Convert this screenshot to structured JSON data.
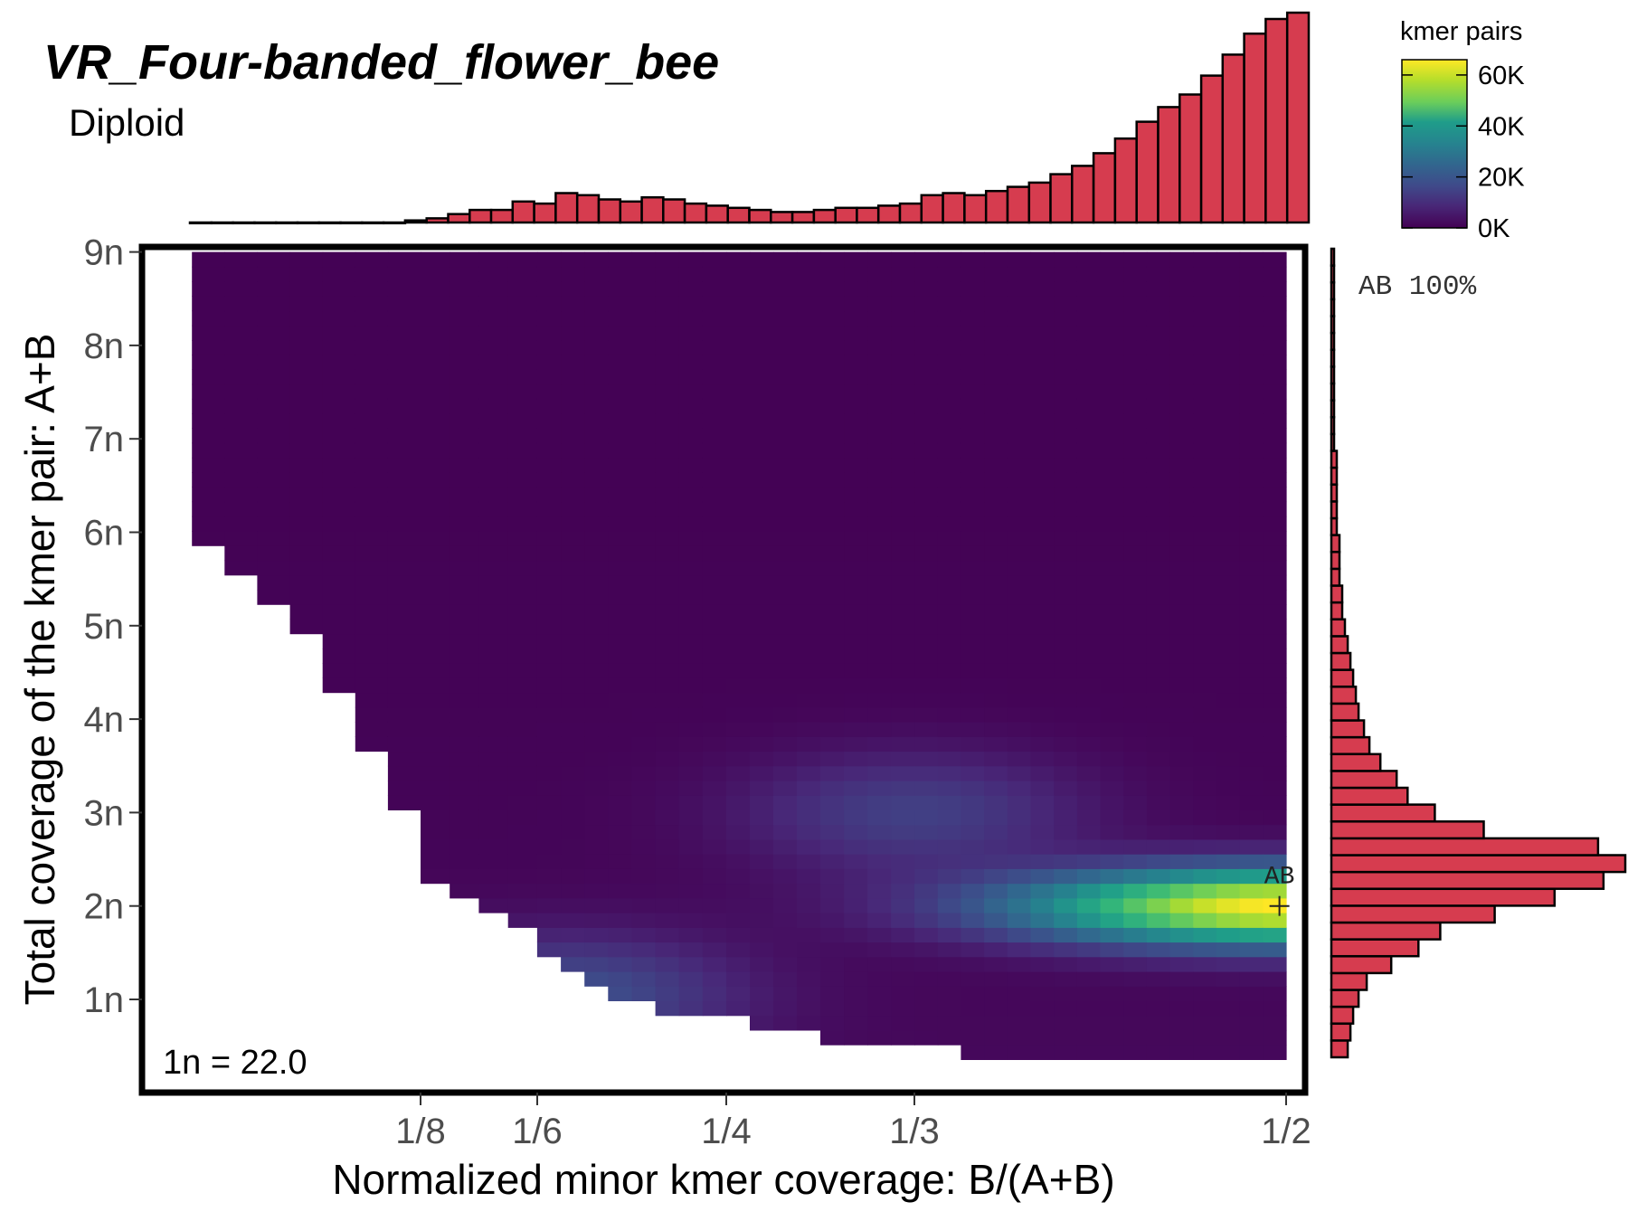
{
  "chart_data": {
    "type": "heatmap",
    "title": "VR_Four-banded_flower_bee",
    "subtitle": "Diploid",
    "xlabel": "Normalized minor kmer coverage: B/(A+B)",
    "ylabel": "Total coverage of the kmer pair: A+B",
    "x_ticks": [
      {
        "label": "1/8",
        "value": 0.125
      },
      {
        "label": "1/6",
        "value": 0.1667
      },
      {
        "label": "1/4",
        "value": 0.25
      },
      {
        "label": "1/3",
        "value": 0.3333
      },
      {
        "label": "1/2",
        "value": 0.5
      }
    ],
    "y_ticks": [
      {
        "label": "1n",
        "value": 1
      },
      {
        "label": "2n",
        "value": 2
      },
      {
        "label": "3n",
        "value": 3
      },
      {
        "label": "4n",
        "value": 4
      },
      {
        "label": "5n",
        "value": 5
      },
      {
        "label": "6n",
        "value": 6
      },
      {
        "label": "7n",
        "value": 7
      },
      {
        "label": "8n",
        "value": 8
      },
      {
        "label": "9n",
        "value": 9
      }
    ],
    "xlim": [
      0.0,
      0.5
    ],
    "ylim": [
      0.2,
      9.0
    ],
    "legend": {
      "title": "kmer pairs",
      "labels": [
        "0K",
        "20K",
        "40K",
        "60K"
      ],
      "values": [
        0,
        20000,
        40000,
        60000
      ],
      "max": 66000,
      "colormap": "viridis",
      "position": "top-right"
    },
    "peaks": [
      {
        "label": "AB",
        "x": 0.497,
        "y": 2.0
      }
    ],
    "coverage_note": "1n = 22.0",
    "smudge_summary": "AB 100%",
    "heatmap_model": {
      "peak_x": 0.5,
      "peak_y": 2.0,
      "peak_value": 66000,
      "secondary_ridges": [
        {
          "x": 0.333,
          "y": 3.0,
          "value": 9000
        },
        {
          "x": 0.18,
          "y": 1.05,
          "value": 12000
        }
      ],
      "background": 400
    },
    "top_histogram": {
      "x_start": 0.0,
      "x_end": 0.5,
      "values": [
        0,
        0,
        0,
        0,
        0,
        0,
        0,
        0,
        0,
        0,
        1,
        2,
        4,
        6,
        6,
        10,
        9,
        14,
        13,
        11,
        10,
        12,
        11,
        9,
        8,
        7,
        6,
        5,
        5,
        6,
        7,
        7,
        8,
        9,
        13,
        14,
        13,
        15,
        17,
        19,
        23,
        27,
        33,
        40,
        48,
        55,
        61,
        70,
        80,
        90,
        97,
        100
      ],
      "color": "#d63c4f"
    },
    "right_histogram": {
      "y_start": 0.4,
      "y_end": 9.0,
      "values": [
        6,
        7,
        8,
        10,
        13,
        22,
        32,
        40,
        60,
        82,
        100,
        108,
        98,
        56,
        38,
        28,
        24,
        18,
        14,
        12,
        10,
        9,
        8,
        7,
        6,
        5,
        4,
        4,
        3,
        3,
        3,
        2,
        2,
        2,
        2,
        2,
        1,
        1,
        1,
        1,
        1,
        1,
        1,
        1,
        1,
        1,
        1,
        1
      ],
      "color": "#d63c4f"
    }
  }
}
